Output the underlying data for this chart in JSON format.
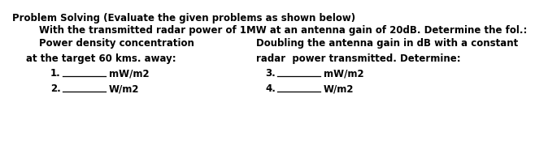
{
  "bg_color": "#ffffff",
  "title": "Problem Solving (Evaluate the given problems as shown below)",
  "line1": "With the transmitted radar power of 1MW at an antenna gain of 20dB. Determine the fol.:",
  "left_header": "Power density concentration",
  "right_header": "Doubling the antenna gain in dB with a constant",
  "left_sub": "at the target 60 kms. away:",
  "right_sub": "radar  power transmitted. Determine:",
  "item1_num": "1.",
  "item1_unit": "mW/m2",
  "item2_num": "2.",
  "item2_unit": "W/m2",
  "item3_num": "3.",
  "item3_unit": "mW/m2",
  "item4_num": "4.",
  "item4_unit": "W/m2",
  "fontsize": 8.5
}
